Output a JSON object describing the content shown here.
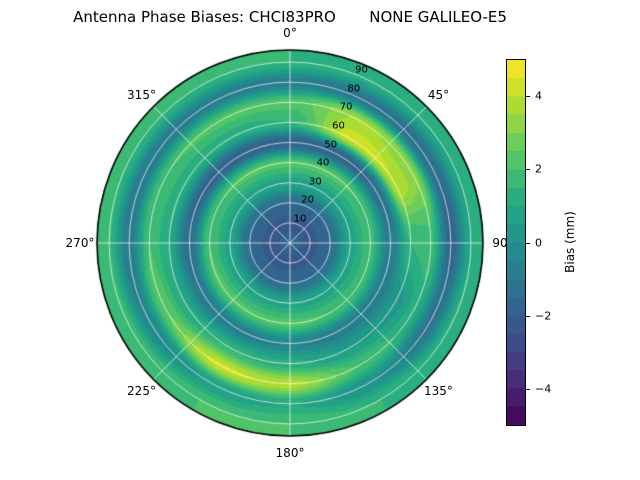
{
  "chart_data": {
    "type": "heatmap",
    "projection": "polar",
    "title": "Antenna Phase Biases: CHCI83PRO       NONE GALILEO-E5",
    "zmax": 96,
    "rlabel_angle": 22.5,
    "radial_ticks": [
      10,
      20,
      30,
      40,
      50,
      60,
      70,
      80,
      90
    ],
    "azimuth_labels": [
      {
        "angle": 0,
        "text": "0°"
      },
      {
        "angle": 45,
        "text": "45°"
      },
      {
        "angle": 90,
        "text": "90"
      },
      {
        "angle": 135,
        "text": "135°"
      },
      {
        "angle": 180,
        "text": "180°"
      },
      {
        "angle": 225,
        "text": "225°"
      },
      {
        "angle": 270,
        "text": "270°"
      },
      {
        "angle": 315,
        "text": "315°"
      }
    ],
    "colormap": {
      "name": "viridis",
      "stops": [
        "#440154",
        "#482475",
        "#414487",
        "#355f8d",
        "#2a788e",
        "#21918c",
        "#22a884",
        "#44bf70",
        "#7ad151",
        "#bddf26",
        "#fde725"
      ]
    },
    "colorbar": {
      "label": "Bias (mm)",
      "vmin": -5,
      "vmax": 5,
      "ticks": [
        -4,
        -2,
        0,
        2,
        4
      ],
      "tick_labels": [
        "−4",
        "−2",
        "0",
        "2",
        "4"
      ]
    },
    "grid": {
      "azimuth_deg": [
        0,
        30,
        60,
        90,
        120,
        150,
        180,
        210,
        240,
        270,
        300,
        330
      ],
      "zenith_deg": [
        0,
        10,
        20,
        30,
        40,
        50,
        60,
        70,
        80,
        90
      ],
      "units": "mm",
      "values": [
        [
          -1.8,
          -1.8,
          -1.8,
          -1.8,
          -1.8,
          -1.8,
          -1.8,
          -1.8,
          -1.8,
          -1.8,
          -1.8,
          -1.8
        ],
        [
          -2.2,
          -2.2,
          -2.2,
          -2.2,
          -2.2,
          -2.2,
          -2.2,
          -2.2,
          -2.2,
          -2.2,
          -2.2,
          -2.2
        ],
        [
          -1.5,
          -1.5,
          -1.5,
          -1.5,
          -1.5,
          -1.5,
          -1.5,
          -1.5,
          -1.5,
          -1.5,
          -1.5,
          -1.5
        ],
        [
          0.8,
          0.8,
          0.8,
          0.8,
          0.8,
          0.8,
          0.8,
          0.8,
          0.8,
          0.8,
          0.8,
          0.8
        ],
        [
          2.2,
          2.2,
          2.0,
          1.8,
          1.8,
          2.0,
          2.2,
          2.2,
          2.2,
          2.0,
          2.0,
          2.2
        ],
        [
          -2.0,
          -2.0,
          -1.5,
          -1.0,
          -0.8,
          -0.8,
          -0.5,
          -0.8,
          -1.0,
          -1.5,
          -1.8,
          -2.0
        ],
        [
          1.5,
          4.3,
          4.0,
          1.5,
          0.3,
          0.5,
          1.2,
          1.5,
          1.0,
          1.0,
          1.2,
          1.2
        ],
        [
          2.2,
          3.6,
          3.2,
          1.8,
          1.2,
          2.0,
          3.8,
          4.2,
          2.5,
          2.0,
          2.0,
          2.2
        ],
        [
          -0.8,
          -1.2,
          -1.5,
          -1.8,
          -1.2,
          0.0,
          1.0,
          0.5,
          -0.5,
          -1.0,
          -1.0,
          -0.8
        ],
        [
          1.5,
          1.2,
          1.0,
          1.0,
          1.2,
          1.5,
          2.0,
          2.0,
          1.8,
          1.6,
          1.5,
          1.5
        ]
      ]
    }
  }
}
